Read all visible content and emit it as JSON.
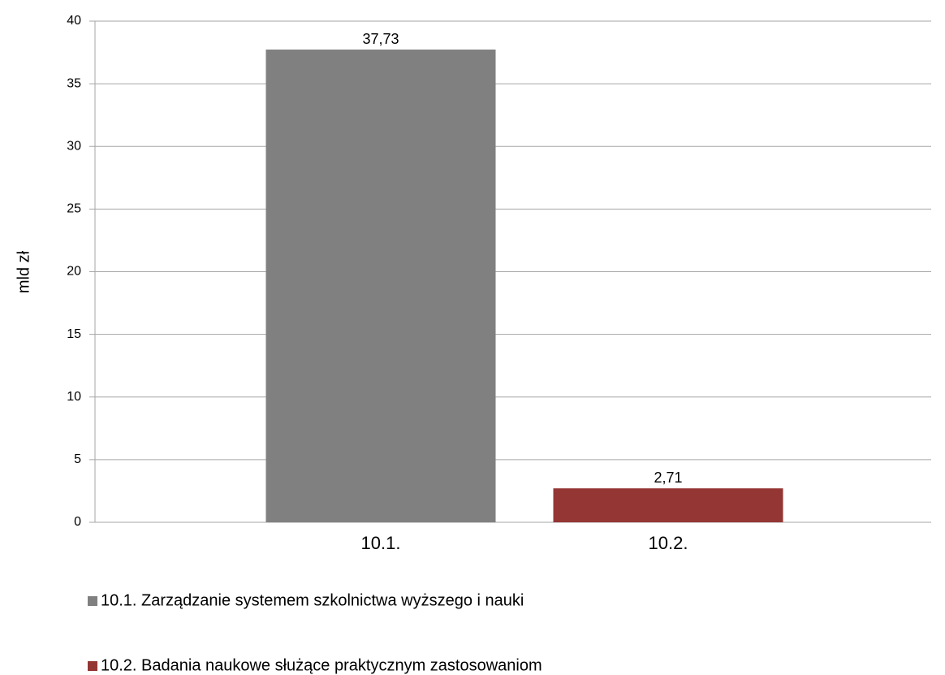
{
  "chart_data": {
    "type": "bar",
    "y_label": "mld zł",
    "categories": [
      "10.1.",
      "10.2."
    ],
    "series": [
      {
        "name": "10.1. Zarządzanie systemem szkolnictwa wyższego i nauki",
        "color": "#808080",
        "values": [
          37.73,
          null
        ],
        "value_labels": [
          "37,73",
          null
        ]
      },
      {
        "name": "10.2. Badania naukowe służące praktycznym zastosowaniom",
        "color": "#943634",
        "values": [
          null,
          2.71
        ],
        "value_labels": [
          null,
          "2,71"
        ]
      }
    ],
    "ylim": [
      0,
      40
    ],
    "yticks": [
      0,
      5,
      10,
      15,
      20,
      25,
      30,
      35,
      40
    ],
    "grid": true,
    "legend": "bottom"
  }
}
